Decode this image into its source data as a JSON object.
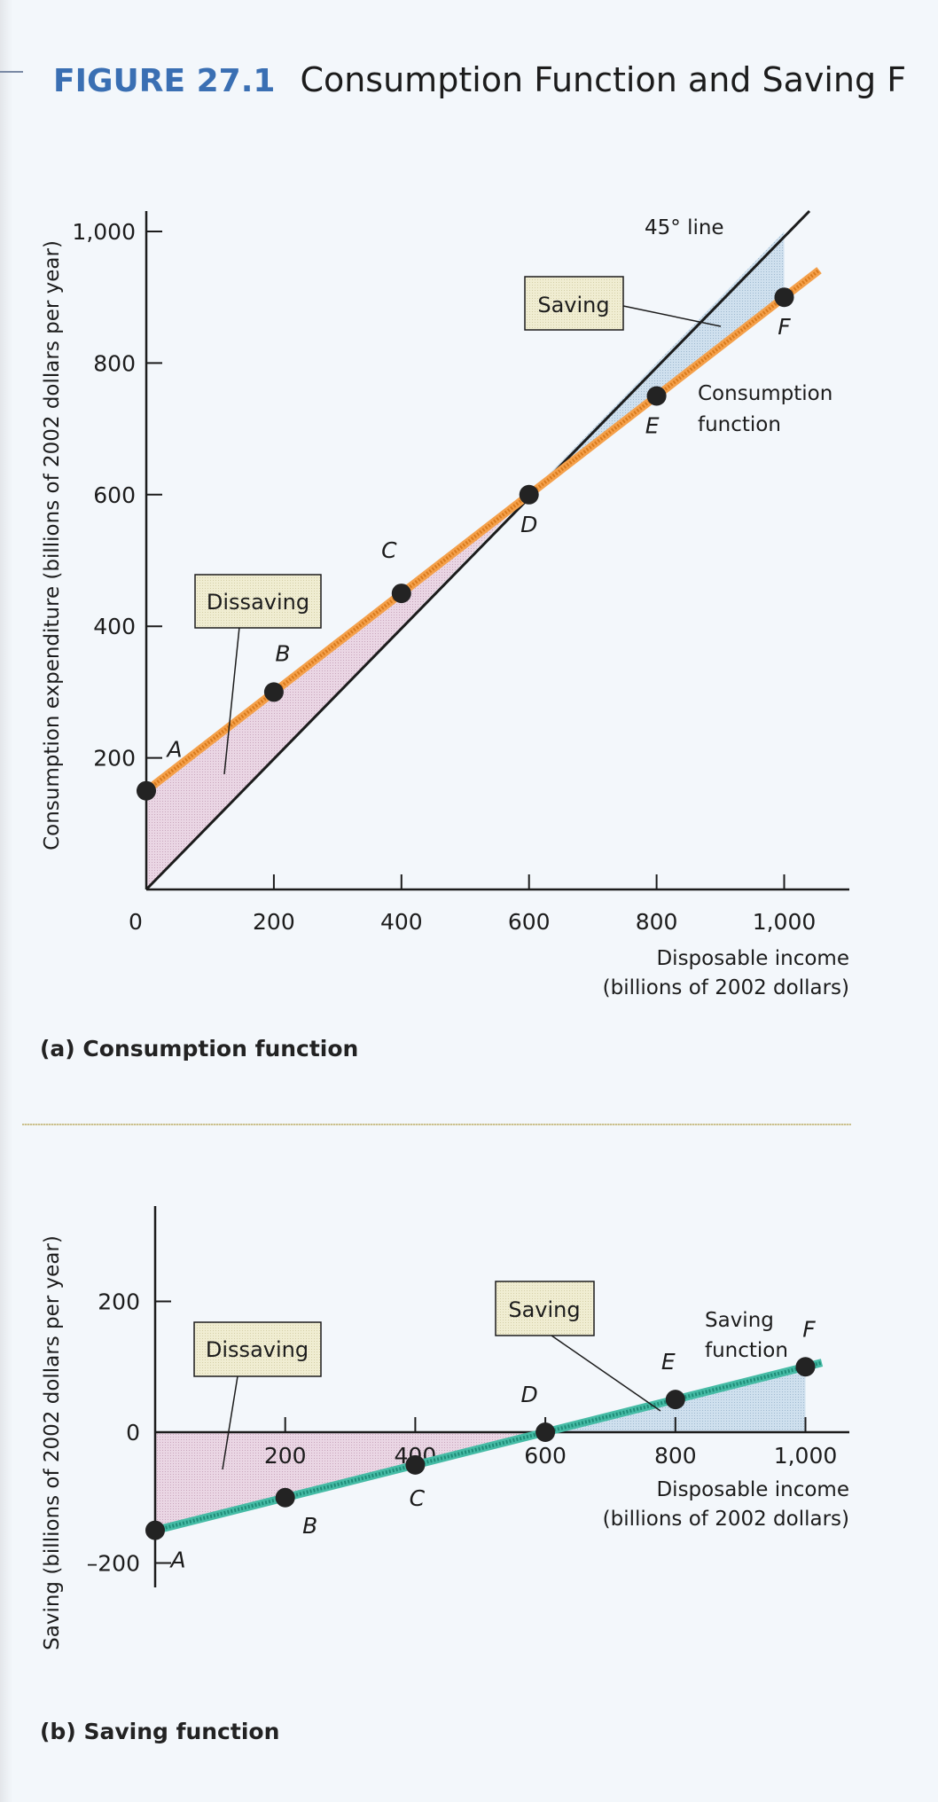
{
  "header": {
    "figure_number": "FIGURE 27.1",
    "figure_title": "Consumption Function and Saving F"
  },
  "colors": {
    "figure_number": "#3a6fb3",
    "consumption_line": "#e88a2e",
    "saving_line": "#2aa08c",
    "line_45": "#1c1c1c",
    "dissaving_fill": "#e7cfe0",
    "saving_fill": "#c9dcec",
    "label_box": "#efeccd",
    "point": "#232323"
  },
  "chart_data": [
    {
      "type": "line",
      "panel": "a",
      "caption": "(a) Consumption function",
      "xlabel": [
        "Disposable income",
        "(billions of 2002 dollars)"
      ],
      "ylabel": "Consumption expenditure (billions of 2002 dollars per year)",
      "xlim": [
        0,
        1080
      ],
      "ylim": [
        0,
        1080
      ],
      "x_ticks": [
        0,
        200,
        400,
        600,
        800,
        1000
      ],
      "x_tick_labels": [
        "0",
        "200",
        "400",
        "600",
        "800",
        "1,000"
      ],
      "y_ticks": [
        200,
        400,
        600,
        800,
        1000
      ],
      "y_tick_labels": [
        "200",
        "400",
        "600",
        "800",
        "1,000"
      ],
      "grid": false,
      "series": [
        {
          "name": "Consumption function",
          "x": [
            0,
            200,
            400,
            600,
            800,
            1000
          ],
          "y": [
            150,
            300,
            450,
            600,
            750,
            900
          ],
          "point_labels": [
            "A",
            "B",
            "C",
            "D",
            "E",
            "F"
          ]
        },
        {
          "name": "45° line",
          "x": [
            0,
            1080
          ],
          "y": [
            0,
            1080
          ]
        }
      ],
      "annotations": {
        "line_45_label": "45° line",
        "function_label": [
          "Consumption",
          "function"
        ],
        "dissaving_box": "Dissaving",
        "saving_box": "Saving"
      },
      "regions": [
        {
          "name": "Dissaving",
          "x_range": [
            0,
            600
          ],
          "between": [
            "Consumption function",
            "45° line"
          ]
        },
        {
          "name": "Saving",
          "x_range": [
            600,
            1000
          ],
          "between": [
            "45° line",
            "Consumption function"
          ]
        }
      ]
    },
    {
      "type": "line",
      "panel": "b",
      "caption": "(b) Saving function",
      "xlabel": [
        "Disposable income",
        "(billions of 2002 dollars)"
      ],
      "ylabel": "Saving (billions of 2002 dollars per year)",
      "xlim": [
        0,
        1080
      ],
      "ylim": [
        -250,
        300
      ],
      "x_ticks": [
        200,
        400,
        600,
        800,
        1000
      ],
      "x_tick_labels": [
        "200",
        "400",
        "600",
        "800",
        "1,000"
      ],
      "y_ticks": [
        200,
        0,
        -200
      ],
      "y_tick_labels": [
        "200",
        "0",
        "–200"
      ],
      "grid": false,
      "series": [
        {
          "name": "Saving function",
          "x": [
            0,
            200,
            400,
            600,
            800,
            1000
          ],
          "y": [
            -150,
            -100,
            -50,
            0,
            50,
            100
          ],
          "point_labels": [
            "A",
            "B",
            "C",
            "D",
            "E",
            "F"
          ]
        }
      ],
      "annotations": {
        "function_label": [
          "Saving",
          "function"
        ],
        "dissaving_box": "Dissaving",
        "saving_box": "Saving"
      },
      "regions": [
        {
          "name": "Dissaving",
          "x_range": [
            0,
            600
          ],
          "between": [
            "x-axis",
            "Saving function"
          ]
        },
        {
          "name": "Saving",
          "x_range": [
            600,
            1000
          ],
          "between": [
            "Saving function",
            "x-axis"
          ]
        }
      ]
    }
  ]
}
